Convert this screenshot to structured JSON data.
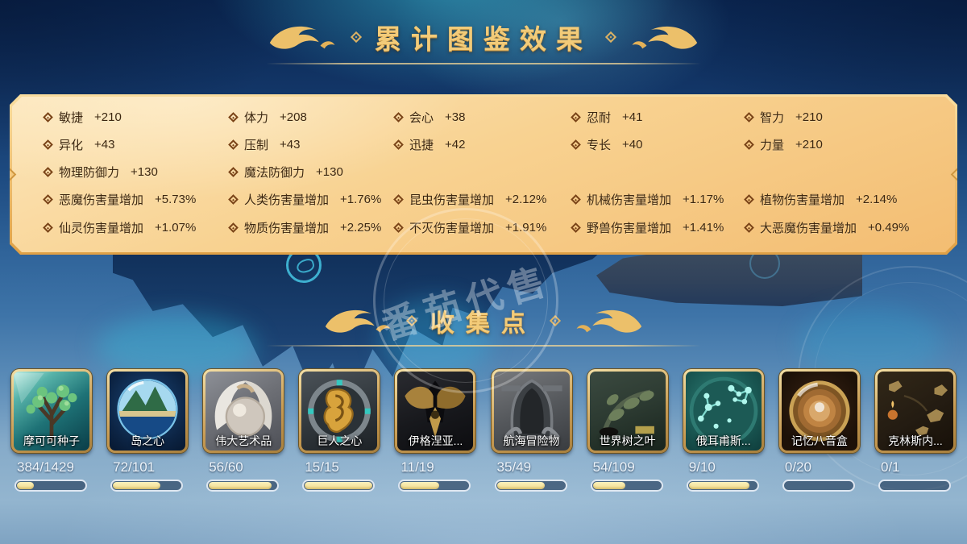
{
  "section_effects": {
    "title": "累计图鉴效果",
    "rows": [
      [
        {
          "label": "敏捷",
          "value": "+210"
        },
        {
          "label": "体力",
          "value": "+208"
        },
        {
          "label": "会心",
          "value": "+38"
        },
        {
          "label": "忍耐",
          "value": "+41"
        },
        {
          "label": "智力",
          "value": "+210"
        }
      ],
      [
        {
          "label": "异化",
          "value": "+43"
        },
        {
          "label": "压制",
          "value": "+43"
        },
        {
          "label": "迅捷",
          "value": "+42"
        },
        {
          "label": "专长",
          "value": "+40"
        },
        {
          "label": "力量",
          "value": "+210"
        }
      ],
      [
        {
          "label": "物理防御力",
          "value": "+130"
        },
        {
          "label": "魔法防御力",
          "value": "+130"
        },
        null,
        null,
        null
      ],
      [
        {
          "label": "恶魔伤害量增加",
          "value": "+5.73%"
        },
        {
          "label": "人类伤害量增加",
          "value": "+1.76%"
        },
        {
          "label": "昆虫伤害量增加",
          "value": "+2.12%"
        },
        {
          "label": "机械伤害量增加",
          "value": "+1.17%"
        },
        {
          "label": "植物伤害量增加",
          "value": "+2.14%"
        }
      ],
      [
        {
          "label": "仙灵伤害量增加",
          "value": "+1.07%"
        },
        {
          "label": "物质伤害量增加",
          "value": "+2.25%"
        },
        {
          "label": "不灭伤害量增加",
          "value": "+1.91%"
        },
        {
          "label": "野兽伤害量增加",
          "value": "+1.41%"
        },
        {
          "label": "大恶魔伤害量增加",
          "value": "+0.49%"
        }
      ]
    ]
  },
  "section_collections": {
    "title": "收集点"
  },
  "watermark": {
    "text": "番茄代售"
  },
  "cards": [
    {
      "name": "摩可可种子",
      "count": "384/1429",
      "current": 384,
      "total": 1429,
      "icon": "mokoko-seed-icon"
    },
    {
      "name": "岛之心",
      "count": "72/101",
      "current": 72,
      "total": 101,
      "icon": "island-heart-icon"
    },
    {
      "name": "伟大艺术品",
      "count": "56/60",
      "current": 56,
      "total": 60,
      "icon": "great-artwork-icon"
    },
    {
      "name": "巨人之心",
      "count": "15/15",
      "current": 15,
      "total": 15,
      "icon": "giant-heart-icon"
    },
    {
      "name": "伊格涅亚...",
      "count": "11/19",
      "current": 11,
      "total": 19,
      "icon": "ignea-token-icon"
    },
    {
      "name": "航海冒险物",
      "count": "35/49",
      "current": 35,
      "total": 49,
      "icon": "voyage-adventure-icon"
    },
    {
      "name": "世界树之叶",
      "count": "54/109",
      "current": 54,
      "total": 109,
      "icon": "world-tree-leaf-icon"
    },
    {
      "name": "俄耳甫斯...",
      "count": "9/10",
      "current": 9,
      "total": 10,
      "icon": "orpheus-star-icon"
    },
    {
      "name": "记忆八音盒",
      "count": "0/20",
      "current": 0,
      "total": 20,
      "icon": "memory-music-box-icon"
    },
    {
      "name": "克林斯内...",
      "count": "0/1",
      "current": 0,
      "total": 1,
      "icon": "krins-map-icon"
    }
  ],
  "colors": {
    "title_gold": "#f2cb79",
    "panel_fill": "#f8d291",
    "stat_text": "#3c2710",
    "bar_fill": "#f2dd8e",
    "bar_track": "#0d2444"
  }
}
